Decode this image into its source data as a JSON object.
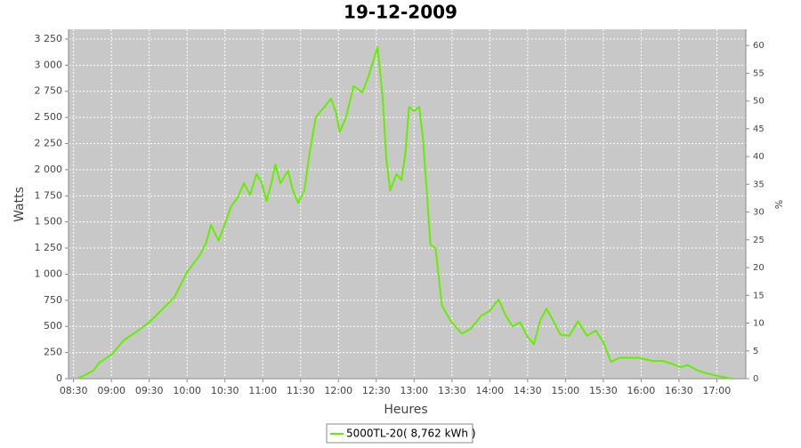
{
  "chart_data": {
    "type": "line",
    "title": "19-12-2009",
    "xlabel": "Heures",
    "ylabel": "Watts",
    "y2label": "%",
    "x": [
      513,
      520,
      526,
      530,
      540,
      550,
      560,
      570,
      580,
      590,
      600,
      610,
      615,
      619,
      625,
      630,
      635,
      640,
      645,
      650,
      655,
      659,
      663,
      667,
      670,
      674,
      680,
      684,
      688,
      693,
      697,
      702,
      706,
      709,
      714,
      718,
      721,
      726,
      732,
      739,
      744,
      751,
      755,
      758,
      761,
      766,
      770,
      773,
      776,
      780,
      784,
      787,
      790,
      793,
      797,
      802,
      809,
      818,
      825,
      833,
      840,
      847,
      852,
      858,
      864,
      870,
      875,
      880,
      885,
      890,
      896,
      903,
      910,
      917,
      924,
      930,
      936,
      943,
      950,
      958,
      969,
      977,
      985,
      991,
      997,
      1003,
      1009,
      1016,
      1023,
      1032
    ],
    "series": [
      {
        "name": "5000TL-20( 8,762 kWh )",
        "color": "#66ee00",
        "values": [
          0,
          40,
          80,
          150,
          230,
          370,
          450,
          540,
          660,
          780,
          1020,
          1180,
          1300,
          1470,
          1320,
          1480,
          1650,
          1730,
          1870,
          1760,
          1960,
          1880,
          1700,
          1880,
          2050,
          1870,
          1990,
          1800,
          1680,
          1800,
          2150,
          2500,
          2560,
          2600,
          2680,
          2550,
          2360,
          2500,
          2800,
          2740,
          2900,
          3170,
          2700,
          2100,
          1800,
          1960,
          1900,
          2150,
          2600,
          2560,
          2600,
          2300,
          1800,
          1280,
          1250,
          700,
          550,
          430,
          480,
          600,
          650,
          760,
          620,
          500,
          540,
          400,
          330,
          560,
          670,
          560,
          420,
          410,
          550,
          410,
          460,
          350,
          160,
          200,
          200,
          200,
          170,
          170,
          140,
          110,
          130,
          90,
          60,
          40,
          20,
          0
        ]
      }
    ],
    "xlim": [
      506,
      1043
    ],
    "xticks": [
      {
        "value": 510,
        "label": "08:30"
      },
      {
        "value": 540,
        "label": "09:00"
      },
      {
        "value": 570,
        "label": "09:30"
      },
      {
        "value": 600,
        "label": "10:00"
      },
      {
        "value": 630,
        "label": "10:30"
      },
      {
        "value": 660,
        "label": "11:00"
      },
      {
        "value": 690,
        "label": "11:30"
      },
      {
        "value": 720,
        "label": "12:00"
      },
      {
        "value": 750,
        "label": "12:30"
      },
      {
        "value": 780,
        "label": "13:00"
      },
      {
        "value": 810,
        "label": "13:30"
      },
      {
        "value": 840,
        "label": "14:00"
      },
      {
        "value": 870,
        "label": "14:30"
      },
      {
        "value": 900,
        "label": "15:00"
      },
      {
        "value": 930,
        "label": "15:30"
      },
      {
        "value": 960,
        "label": "16:00"
      },
      {
        "value": 990,
        "label": "16:30"
      },
      {
        "value": 1020,
        "label": "17:00"
      }
    ],
    "ylim": [
      0,
      3343
    ],
    "yticks": [
      0,
      250,
      500,
      750,
      {
        "value": 1000,
        "label": "1 000"
      },
      {
        "value": 1250,
        "label": "1 250"
      },
      {
        "value": 1500,
        "label": "1 500"
      },
      {
        "value": 1750,
        "label": "1 750"
      },
      {
        "value": 2000,
        "label": "2 000"
      },
      {
        "value": 2250,
        "label": "2 250"
      },
      {
        "value": 2500,
        "label": "2 500"
      },
      {
        "value": 2750,
        "label": "2 750"
      },
      {
        "value": 3000,
        "label": "3 000"
      },
      {
        "value": 3250,
        "label": "3 250"
      }
    ],
    "y2lim": [
      0,
      62.9
    ],
    "y2ticks": [
      0,
      5,
      10,
      15,
      20,
      25,
      30,
      35,
      40,
      45,
      50,
      55,
      60
    ],
    "grid": true,
    "legend": "bottom"
  }
}
